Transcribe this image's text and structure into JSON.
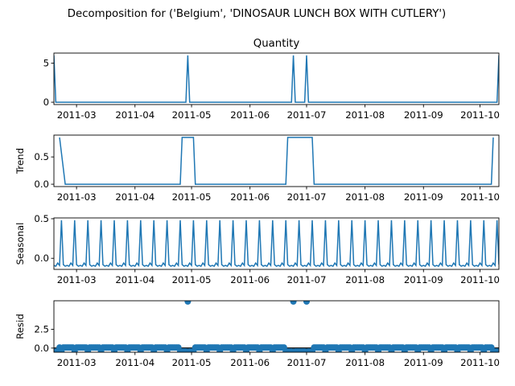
{
  "title": "Decomposition for ('Belgium', 'DINOSAUR LUNCH BOX WITH CUTLERY')",
  "chart_data": {
    "type": "line",
    "x_range": [
      "2011-02-17",
      "2011-10-11"
    ],
    "x_ticks": [
      "2011-03",
      "2011-04",
      "2011-05",
      "2011-06",
      "2011-07",
      "2011-08",
      "2011-09",
      "2011-10"
    ],
    "series_color": "#1f77b4",
    "period_days": 7,
    "subplots": [
      {
        "name": "observed",
        "title": "Quantity",
        "ylabel": "",
        "type": "line",
        "ylim": [
          -0.3,
          6.3
        ],
        "yticks": [
          0,
          5
        ],
        "baseline": 0,
        "spikes": [
          {
            "date": "2011-02-17",
            "value": 6
          },
          {
            "date": "2011-04-29",
            "value": 6
          },
          {
            "date": "2011-06-24",
            "value": 6
          },
          {
            "date": "2011-07-01",
            "value": 6
          },
          {
            "date": "2011-10-11",
            "value": 6
          }
        ]
      },
      {
        "name": "trend",
        "title": "",
        "ylabel": "Trend",
        "type": "line",
        "ylim": [
          -0.043,
          0.9
        ],
        "yticks": [
          0.0,
          0.5
        ],
        "points": [
          {
            "date": "2011-02-20",
            "value": 0.857
          },
          {
            "date": "2011-02-23",
            "value": 0.0
          },
          {
            "date": "2011-04-25",
            "value": 0.0
          },
          {
            "date": "2011-04-26",
            "value": 0.857
          },
          {
            "date": "2011-05-02",
            "value": 0.857
          },
          {
            "date": "2011-05-03",
            "value": 0.0
          },
          {
            "date": "2011-06-20",
            "value": 0.0
          },
          {
            "date": "2011-06-21",
            "value": 0.857
          },
          {
            "date": "2011-07-04",
            "value": 0.857
          },
          {
            "date": "2011-07-05",
            "value": 0.0
          },
          {
            "date": "2011-10-07",
            "value": 0.0
          },
          {
            "date": "2011-10-08",
            "value": 0.857
          }
        ]
      },
      {
        "name": "seasonal",
        "title": "",
        "ylabel": "Seasonal",
        "type": "line",
        "ylim": [
          -0.14,
          0.51
        ],
        "yticks": [
          0.0,
          0.5
        ],
        "pattern": [
          {
            "offset": 0,
            "value": 0.48
          },
          {
            "offset": 1,
            "value": -0.08
          },
          {
            "offset": 2,
            "value": -0.1
          },
          {
            "offset": 3,
            "value": -0.09
          },
          {
            "offset": 4,
            "value": -0.1
          },
          {
            "offset": 5,
            "value": -0.06
          },
          {
            "offset": 6,
            "value": -0.09
          }
        ],
        "phase_start": "2011-02-21"
      },
      {
        "name": "resid",
        "title": "",
        "ylabel": "Resid",
        "type": "scatter",
        "ylim": [
          -0.55,
          6.3
        ],
        "yticks": [
          0.0,
          2.5
        ],
        "zero_line": true,
        "outliers": [
          {
            "date": "2011-04-29",
            "value": 6.2
          },
          {
            "date": "2011-06-24",
            "value": 6.2
          },
          {
            "date": "2011-07-01",
            "value": 6.2
          }
        ],
        "low_intervals": [
          {
            "start": "2011-02-17",
            "end": "2011-02-19"
          },
          {
            "start": "2011-04-26",
            "end": "2011-05-02"
          },
          {
            "start": "2011-06-21",
            "end": "2011-07-04"
          },
          {
            "start": "2011-10-08",
            "end": "2011-10-11"
          }
        ],
        "low_value": -0.45,
        "seasonal_points": {
          "weekday_offset_0": -0.48,
          "other": 0.08
        }
      }
    ]
  }
}
